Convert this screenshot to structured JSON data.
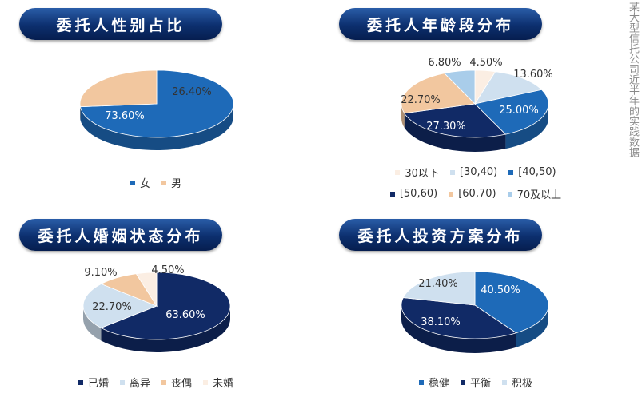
{
  "side_caption": "某大型信托公司近半年的实践数据",
  "chart_data": [
    {
      "type": "pie",
      "title": "委托人性别占比",
      "series": [
        {
          "name": "女",
          "value": 73.6,
          "label": "73.60%",
          "color": "#1e6ab8"
        },
        {
          "name": "男",
          "value": 26.4,
          "label": "26.40%",
          "color": "#f2c79f"
        }
      ],
      "legend": "bottom"
    },
    {
      "type": "pie",
      "title": "委托人年龄段分布",
      "series": [
        {
          "name": "30以下",
          "value": 4.5,
          "label": "4.50%",
          "color": "#fbeee3"
        },
        {
          "name": "[30,40)",
          "value": 13.6,
          "label": "13.60%",
          "color": "#cfe0ef"
        },
        {
          "name": "[40,50)",
          "value": 25.0,
          "label": "25.00%",
          "color": "#1e6ab8"
        },
        {
          "name": "[50,60)",
          "value": 27.3,
          "label": "27.30%",
          "color": "#112a66"
        },
        {
          "name": "[60,70)",
          "value": 22.7,
          "label": "22.70%",
          "color": "#f2c79f"
        },
        {
          "name": "70及以上",
          "value": 6.8,
          "label": "6.80%",
          "color": "#a9cdea"
        }
      ],
      "legend": "bottom"
    },
    {
      "type": "pie",
      "title": "委托人婚姻状态分布",
      "series": [
        {
          "name": "已婚",
          "value": 63.6,
          "label": "63.60%",
          "color": "#112a66"
        },
        {
          "name": "离异",
          "value": 22.7,
          "label": "22.70%",
          "color": "#cfe0ef"
        },
        {
          "name": "丧偶",
          "value": 9.1,
          "label": "9.10%",
          "color": "#f2c79f"
        },
        {
          "name": "未婚",
          "value": 4.5,
          "label": "4.50%",
          "color": "#fbeee3"
        }
      ],
      "legend": "bottom"
    },
    {
      "type": "pie",
      "title": "委托人投资方案分布",
      "series": [
        {
          "name": "稳健",
          "value": 40.5,
          "label": "40.50%",
          "color": "#1e6ab8"
        },
        {
          "name": "平衡",
          "value": 38.1,
          "label": "38.10%",
          "color": "#112a66"
        },
        {
          "name": "积极",
          "value": 21.4,
          "label": "21.40%",
          "color": "#cfe0ef"
        }
      ],
      "legend": "bottom"
    }
  ]
}
